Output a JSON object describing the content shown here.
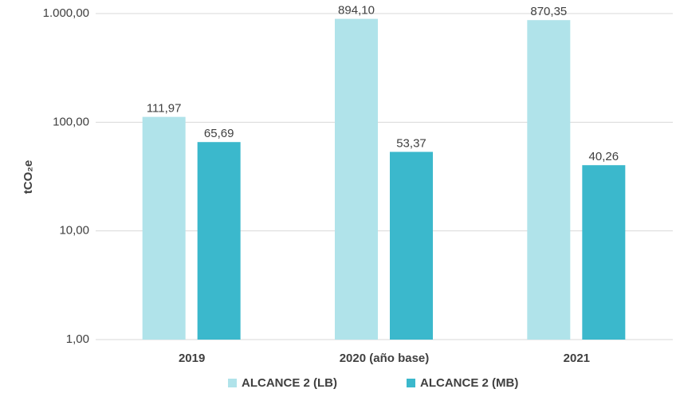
{
  "chart_data": {
    "type": "bar",
    "y_label": "tCO₂e",
    "categories": [
      "2019",
      "2020 (año base)",
      "2021"
    ],
    "series": [
      {
        "name": "ALCANCE 2 (LB)",
        "color": "#b0e3ea",
        "values": [
          111.97,
          894.1,
          870.35
        ],
        "value_labels": [
          "111,97",
          "894,10",
          "870,35"
        ]
      },
      {
        "name": "ALCANCE 2 (MB)",
        "color": "#3bb8cc",
        "values": [
          65.69,
          53.37,
          40.26
        ],
        "value_labels": [
          "65,69",
          "53,37",
          "40,26"
        ]
      }
    ],
    "log_scale": true,
    "ylim": [
      1,
      1000
    ],
    "yticks": [
      {
        "value": 1,
        "label": "1,00"
      },
      {
        "value": 10,
        "label": "10,00"
      },
      {
        "value": 100,
        "label": "100,00"
      },
      {
        "value": 1000,
        "label": "1.000,00"
      }
    ],
    "grid": true,
    "legend": "bottom"
  }
}
